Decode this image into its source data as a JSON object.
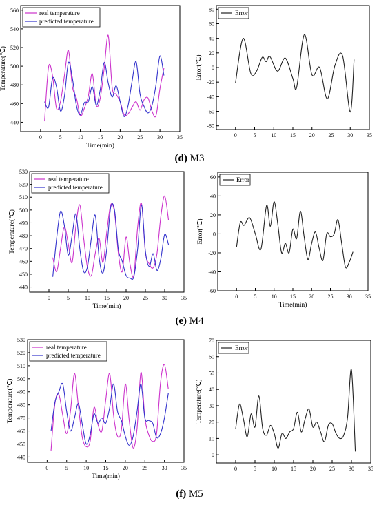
{
  "figure": {
    "charts": [
      {
        "id": "d-temp",
        "type": "line",
        "xlabel": "Time(min)",
        "ylabel": "Temperature(℃)",
        "xlim": [
          -5,
          35
        ],
        "ylim": [
          430,
          565
        ],
        "xticks": [
          0,
          5,
          10,
          15,
          20,
          25,
          30,
          35
        ],
        "yticks": [
          440,
          460,
          480,
          500,
          520,
          540,
          560
        ],
        "legend": "top-left",
        "series": [
          {
            "name": "real temperature",
            "color": "#cc33cc",
            "x": [
              1,
              2,
              3,
              4,
              5,
              6,
              7,
              8,
              9,
              10,
              11,
              12,
              13,
              14,
              15,
              16,
              17,
              18,
              19,
              20,
              21,
              22,
              23,
              24,
              25,
              26,
              27,
              28,
              29,
              30,
              31
            ],
            "y": [
              441,
              499,
              490,
              455,
              462,
              490,
              517,
              478,
              466,
              447,
              455,
              468,
              492,
              458,
              466,
              498,
              533,
              477,
              470,
              462,
              448,
              449,
              456,
              462,
              453,
              464,
              466,
              452,
              447,
              476,
              498
            ]
          },
          {
            "name": "predicted temperature",
            "color": "#3333cc",
            "x": [
              1,
              2,
              3,
              4,
              5,
              6,
              7,
              8,
              9,
              10,
              11,
              12,
              13,
              14,
              15,
              16,
              17,
              18,
              19,
              20,
              21,
              22,
              23,
              24,
              25,
              26,
              27,
              28,
              29,
              30,
              31
            ],
            "y": [
              462,
              456,
              487,
              478,
              452,
              468,
              504,
              487,
              458,
              448,
              461,
              462,
              478,
              458,
              475,
              504,
              482,
              467,
              479,
              462,
              446,
              458,
              484,
              505,
              470,
              457,
              450,
              458,
              480,
              511,
              490
            ]
          }
        ]
      },
      {
        "id": "d-err",
        "type": "line",
        "xlabel": "",
        "ylabel": "Error(℃)",
        "xlim": [
          -5,
          35
        ],
        "ylim": [
          -85,
          85
        ],
        "xticks": [
          0,
          5,
          10,
          15,
          20,
          25,
          30,
          35
        ],
        "yticks": [
          -80,
          -60,
          -40,
          -20,
          0,
          20,
          40,
          60,
          80
        ],
        "legend": "top-left",
        "series": [
          {
            "name": "Error",
            "color": "#222222",
            "x": [
              0,
              2,
              4,
              5.5,
              7,
              8,
              9,
              11,
              13,
              15,
              16,
              18,
              20,
              22,
              24,
              26,
              28,
              30,
              31
            ],
            "y": [
              -21,
              40,
              -8,
              -5,
              14,
              8,
              15,
              -5,
              13,
              -15,
              -27,
              45,
              -10,
              0,
              -43,
              3,
              16,
              -61,
              11
            ]
          }
        ]
      },
      {
        "id": "e-temp",
        "type": "line",
        "xlabel": "Time(min)",
        "ylabel": "Temperature(℃)",
        "xlim": [
          -5,
          35
        ],
        "ylim": [
          436,
          530
        ],
        "xticks": [
          0,
          5,
          10,
          15,
          20,
          25,
          30,
          35
        ],
        "yticks": [
          440,
          450,
          460,
          470,
          480,
          490,
          500,
          510,
          520,
          530
        ],
        "legend": "top-left",
        "series": [
          {
            "name": "real temperature",
            "color": "#cc33cc",
            "x": [
              1,
              2,
              3,
              4,
              5,
              6,
              7,
              8,
              9,
              10,
              11,
              12,
              13,
              14,
              15,
              16,
              17,
              18,
              19,
              20,
              21,
              22,
              23,
              24,
              25,
              26,
              27,
              28,
              29,
              30,
              31
            ],
            "y": [
              463,
              452,
              470,
              487,
              474,
              459,
              488,
              504,
              478,
              455,
              449,
              466,
              478,
              459,
              483,
              504,
              498,
              466,
              452,
              479,
              458,
              449,
              487,
              505,
              467,
              458,
              455,
              466,
              495,
              511,
              492
            ]
          },
          {
            "name": "predicted temperature",
            "color": "#3333cc",
            "x": [
              1,
              2,
              3,
              4,
              5,
              6,
              7,
              8,
              9,
              10,
              11,
              12,
              13,
              14,
              15,
              16,
              17,
              18,
              19,
              20,
              21,
              22,
              23,
              24,
              25,
              26,
              27,
              28,
              29,
              30,
              31
            ],
            "y": [
              448,
              478,
              499,
              488,
              465,
              480,
              497,
              470,
              452,
              456,
              478,
              496,
              463,
              451,
              470,
              502,
              500,
              469,
              460,
              449,
              447,
              448,
              470,
              504,
              468,
              456,
              466,
              453,
              462,
              481,
              473
            ]
          }
        ]
      },
      {
        "id": "e-err",
        "type": "line",
        "xlabel": "Time(min)",
        "ylabel": "Error(℃)",
        "xlim": [
          -5,
          35
        ],
        "ylim": [
          -60,
          65
        ],
        "xticks": [
          0,
          5,
          10,
          15,
          20,
          25,
          30,
          35
        ],
        "yticks": [
          -60,
          -40,
          -20,
          0,
          20,
          40,
          60
        ],
        "legend": "top-left",
        "series": [
          {
            "name": "Error",
            "color": "#222222",
            "x": [
              0,
              1,
              2,
              3.5,
              5,
              6.5,
              8,
              9,
              10,
              11,
              12,
              13,
              14,
              15,
              16,
              17,
              18,
              19,
              20,
              21,
              22,
              23,
              24,
              25,
              26,
              27,
              28,
              29,
              30,
              31
            ],
            "y": [
              -14,
              12,
              9,
              17,
              0,
              -16,
              30,
              8,
              34,
              10,
              -20,
              -10,
              -20,
              5,
              -5,
              24,
              -3,
              -27,
              -10,
              2,
              -15,
              -28,
              0,
              -3,
              0,
              15,
              -10,
              -35,
              -30,
              -19
            ]
          }
        ]
      },
      {
        "id": "f-temp",
        "type": "line",
        "xlabel": "Time(min)",
        "ylabel": "Temperature(℃)",
        "xlim": [
          -5,
          35
        ],
        "ylim": [
          436,
          530
        ],
        "xticks": [
          0,
          5,
          10,
          15,
          20,
          25,
          30,
          35
        ],
        "yticks": [
          440,
          450,
          460,
          470,
          480,
          490,
          500,
          510,
          520,
          530
        ],
        "legend": "top-left",
        "series": [
          {
            "name": "real temperature",
            "color": "#cc33cc",
            "x": [
              1,
              2,
              3,
              4,
              5,
              6,
              7,
              8,
              9,
              10,
              11,
              12,
              13,
              14,
              15,
              16,
              17,
              18,
              19,
              20,
              21,
              22,
              23,
              24,
              25,
              26,
              27,
              28,
              29,
              30,
              31
            ],
            "y": [
              445,
              481,
              488,
              472,
              458,
              476,
              504,
              479,
              455,
              448,
              452,
              478,
              465,
              460,
              484,
              504,
              472,
              456,
              461,
              496,
              468,
              447,
              462,
              505,
              470,
              457,
              452,
              458,
              497,
              511,
              492
            ]
          },
          {
            "name": "predicted temperature",
            "color": "#3333cc",
            "x": [
              1,
              2,
              3,
              4,
              5,
              6,
              7,
              8,
              9,
              10,
              11,
              12,
              13,
              14,
              15,
              16,
              17,
              18,
              19,
              20,
              21,
              22,
              23,
              24,
              25,
              26,
              27,
              28,
              29,
              30,
              31
            ],
            "y": [
              460,
              482,
              490,
              496,
              475,
              460,
              470,
              481,
              465,
              450,
              457,
              473,
              466,
              470,
              466,
              478,
              496,
              475,
              468,
              456,
              449,
              456,
              475,
              496,
              470,
              468,
              466,
              455,
              458,
              470,
              489
            ]
          }
        ]
      },
      {
        "id": "f-err",
        "type": "line",
        "xlabel": "",
        "ylabel": "Temperature(℃)",
        "xlim": [
          -5,
          35
        ],
        "ylim": [
          -5,
          70
        ],
        "xticks": [
          0,
          5,
          10,
          15,
          20,
          25,
          30,
          35
        ],
        "yticks": [
          0,
          10,
          20,
          30,
          40,
          50,
          60,
          70
        ],
        "legend": "top-left",
        "series": [
          {
            "name": "Error",
            "color": "#222222",
            "x": [
              0,
              1,
              2,
              3,
              4,
              5,
              6,
              7,
              8,
              9,
              10,
              11,
              12,
              13,
              14,
              15,
              16,
              17,
              18,
              19,
              20,
              21,
              22,
              23,
              24,
              25,
              26,
              27,
              28,
              29,
              30,
              31
            ],
            "y": [
              16,
              31,
              22,
              11,
              25,
              17,
              36,
              16,
              12,
              18,
              13,
              4,
              13,
              10,
              14,
              16,
              26,
              14,
              22,
              28,
              17,
              20,
              14,
              8,
              18,
              19,
              13,
              10,
              12,
              23,
              52,
              2
            ]
          }
        ]
      }
    ],
    "captions": [
      {
        "letter": "(d)",
        "text": " M3"
      },
      {
        "letter": "(e)",
        "text": " M4"
      },
      {
        "letter": "(f)",
        "text": " M5"
      }
    ]
  }
}
